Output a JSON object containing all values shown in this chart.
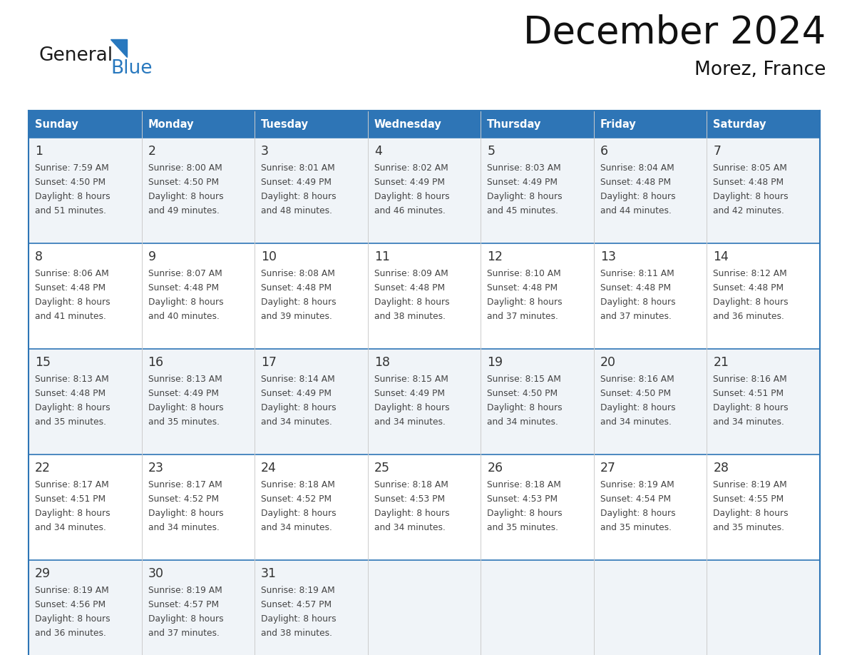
{
  "title": "December 2024",
  "subtitle": "Morez, France",
  "header_color": "#2E75B6",
  "header_text_color": "#FFFFFF",
  "day_names": [
    "Sunday",
    "Monday",
    "Tuesday",
    "Wednesday",
    "Thursday",
    "Friday",
    "Saturday"
  ],
  "row_colors": [
    "#F0F4F8",
    "#FFFFFF",
    "#F0F4F8",
    "#FFFFFF",
    "#F0F4F8"
  ],
  "border_color": "#2E75B6",
  "day_num_color": "#333333",
  "text_color": "#444444",
  "logo_general_color": "#1a1a1a",
  "logo_blue_color": "#2878BE",
  "logo_triangle_color": "#2878BE",
  "calendar_data": [
    [
      {
        "day": 1,
        "sunrise": "7:59 AM",
        "sunset": "4:50 PM",
        "daylight": "8 hours",
        "daylight2": "and 51 minutes."
      },
      {
        "day": 2,
        "sunrise": "8:00 AM",
        "sunset": "4:50 PM",
        "daylight": "8 hours",
        "daylight2": "and 49 minutes."
      },
      {
        "day": 3,
        "sunrise": "8:01 AM",
        "sunset": "4:49 PM",
        "daylight": "8 hours",
        "daylight2": "and 48 minutes."
      },
      {
        "day": 4,
        "sunrise": "8:02 AM",
        "sunset": "4:49 PM",
        "daylight": "8 hours",
        "daylight2": "and 46 minutes."
      },
      {
        "day": 5,
        "sunrise": "8:03 AM",
        "sunset": "4:49 PM",
        "daylight": "8 hours",
        "daylight2": "and 45 minutes."
      },
      {
        "day": 6,
        "sunrise": "8:04 AM",
        "sunset": "4:48 PM",
        "daylight": "8 hours",
        "daylight2": "and 44 minutes."
      },
      {
        "day": 7,
        "sunrise": "8:05 AM",
        "sunset": "4:48 PM",
        "daylight": "8 hours",
        "daylight2": "and 42 minutes."
      }
    ],
    [
      {
        "day": 8,
        "sunrise": "8:06 AM",
        "sunset": "4:48 PM",
        "daylight": "8 hours",
        "daylight2": "and 41 minutes."
      },
      {
        "day": 9,
        "sunrise": "8:07 AM",
        "sunset": "4:48 PM",
        "daylight": "8 hours",
        "daylight2": "and 40 minutes."
      },
      {
        "day": 10,
        "sunrise": "8:08 AM",
        "sunset": "4:48 PM",
        "daylight": "8 hours",
        "daylight2": "and 39 minutes."
      },
      {
        "day": 11,
        "sunrise": "8:09 AM",
        "sunset": "4:48 PM",
        "daylight": "8 hours",
        "daylight2": "and 38 minutes."
      },
      {
        "day": 12,
        "sunrise": "8:10 AM",
        "sunset": "4:48 PM",
        "daylight": "8 hours",
        "daylight2": "and 37 minutes."
      },
      {
        "day": 13,
        "sunrise": "8:11 AM",
        "sunset": "4:48 PM",
        "daylight": "8 hours",
        "daylight2": "and 37 minutes."
      },
      {
        "day": 14,
        "sunrise": "8:12 AM",
        "sunset": "4:48 PM",
        "daylight": "8 hours",
        "daylight2": "and 36 minutes."
      }
    ],
    [
      {
        "day": 15,
        "sunrise": "8:13 AM",
        "sunset": "4:48 PM",
        "daylight": "8 hours",
        "daylight2": "and 35 minutes."
      },
      {
        "day": 16,
        "sunrise": "8:13 AM",
        "sunset": "4:49 PM",
        "daylight": "8 hours",
        "daylight2": "and 35 minutes."
      },
      {
        "day": 17,
        "sunrise": "8:14 AM",
        "sunset": "4:49 PM",
        "daylight": "8 hours",
        "daylight2": "and 34 minutes."
      },
      {
        "day": 18,
        "sunrise": "8:15 AM",
        "sunset": "4:49 PM",
        "daylight": "8 hours",
        "daylight2": "and 34 minutes."
      },
      {
        "day": 19,
        "sunrise": "8:15 AM",
        "sunset": "4:50 PM",
        "daylight": "8 hours",
        "daylight2": "and 34 minutes."
      },
      {
        "day": 20,
        "sunrise": "8:16 AM",
        "sunset": "4:50 PM",
        "daylight": "8 hours",
        "daylight2": "and 34 minutes."
      },
      {
        "day": 21,
        "sunrise": "8:16 AM",
        "sunset": "4:51 PM",
        "daylight": "8 hours",
        "daylight2": "and 34 minutes."
      }
    ],
    [
      {
        "day": 22,
        "sunrise": "8:17 AM",
        "sunset": "4:51 PM",
        "daylight": "8 hours",
        "daylight2": "and 34 minutes."
      },
      {
        "day": 23,
        "sunrise": "8:17 AM",
        "sunset": "4:52 PM",
        "daylight": "8 hours",
        "daylight2": "and 34 minutes."
      },
      {
        "day": 24,
        "sunrise": "8:18 AM",
        "sunset": "4:52 PM",
        "daylight": "8 hours",
        "daylight2": "and 34 minutes."
      },
      {
        "day": 25,
        "sunrise": "8:18 AM",
        "sunset": "4:53 PM",
        "daylight": "8 hours",
        "daylight2": "and 34 minutes."
      },
      {
        "day": 26,
        "sunrise": "8:18 AM",
        "sunset": "4:53 PM",
        "daylight": "8 hours",
        "daylight2": "and 35 minutes."
      },
      {
        "day": 27,
        "sunrise": "8:19 AM",
        "sunset": "4:54 PM",
        "daylight": "8 hours",
        "daylight2": "and 35 minutes."
      },
      {
        "day": 28,
        "sunrise": "8:19 AM",
        "sunset": "4:55 PM",
        "daylight": "8 hours",
        "daylight2": "and 35 minutes."
      }
    ],
    [
      {
        "day": 29,
        "sunrise": "8:19 AM",
        "sunset": "4:56 PM",
        "daylight": "8 hours",
        "daylight2": "and 36 minutes."
      },
      {
        "day": 30,
        "sunrise": "8:19 AM",
        "sunset": "4:57 PM",
        "daylight": "8 hours",
        "daylight2": "and 37 minutes."
      },
      {
        "day": 31,
        "sunrise": "8:19 AM",
        "sunset": "4:57 PM",
        "daylight": "8 hours",
        "daylight2": "and 38 minutes."
      },
      null,
      null,
      null,
      null
    ]
  ]
}
